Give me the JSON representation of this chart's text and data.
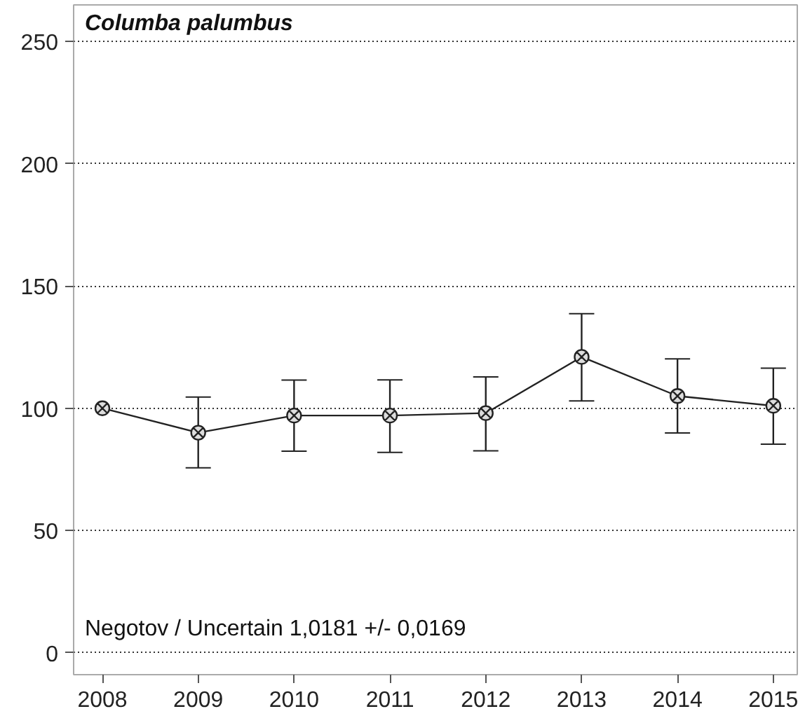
{
  "chart_data": {
    "type": "line",
    "title": "Columba palumbus",
    "x": [
      2008,
      2009,
      2010,
      2011,
      2012,
      2013,
      2014,
      2015
    ],
    "series": [
      {
        "color": "#222222",
        "values": [
          100,
          90,
          97,
          97,
          98,
          121,
          105,
          101
        ],
        "errors": [
          null,
          [
            75.6,
            104.6
          ],
          [
            82.4,
            111.5
          ],
          [
            81.9,
            111.6
          ],
          [
            82.6,
            112.8
          ],
          [
            103,
            138.7
          ],
          [
            89.9,
            120.2
          ],
          [
            85.3,
            116.4
          ]
        ]
      }
    ],
    "xlim": [
      2007.7,
      2015.25
    ],
    "xticks": [
      2008,
      2009,
      2010,
      2011,
      2012,
      2013,
      2014,
      2015
    ],
    "ylim": [
      -9,
      265
    ],
    "yticks": [
      0,
      50,
      100,
      150,
      200,
      250
    ],
    "grid": "y",
    "marker": "cross",
    "line_style": "solid",
    "annotations": [
      "Negotov / Uncertain  1,0181 +/- 0,0169"
    ]
  }
}
